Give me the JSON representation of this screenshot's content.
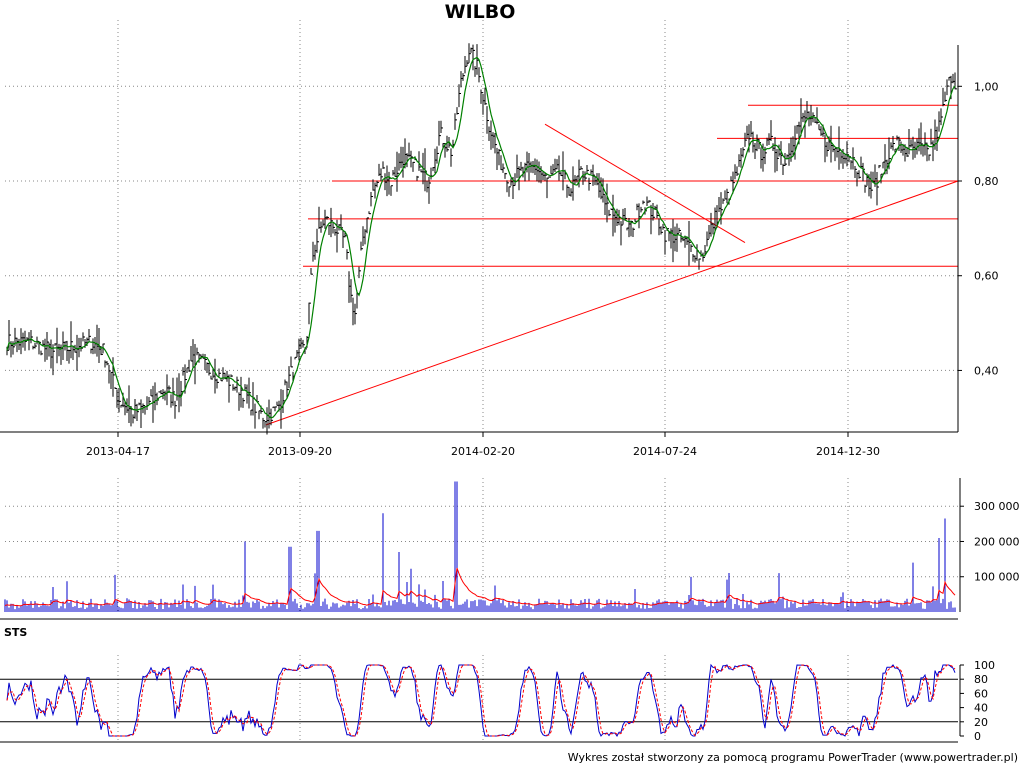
{
  "chart_data": [
    {
      "type": "candlestick",
      "title": "WILBO",
      "x_ticks": [
        "2013-04-17",
        "2013-09-20",
        "2014-02-20",
        "2014-07-24",
        "2014-12-30"
      ],
      "y_ticks": [
        "0,40",
        "0,60",
        "0,80",
        "1,00"
      ],
      "y_tick_values": [
        0.4,
        0.6,
        0.8,
        1.0
      ],
      "ylim": [
        0.27,
        1.14
      ],
      "price_bar_color": "#000000",
      "moving_average_color": "#008000",
      "grid": "dotted",
      "series": [
        {
          "kind": "close",
          "x": [
            "2013-02-01",
            "2013-02-20",
            "2013-03-10",
            "2013-03-25",
            "2013-04-05",
            "2013-04-17",
            "2013-04-30",
            "2013-05-15",
            "2013-05-25",
            "2013-06-05",
            "2013-06-20",
            "2013-07-05",
            "2013-07-20",
            "2013-07-31",
            "2013-08-10",
            "2013-08-20",
            "2013-09-01",
            "2013-09-10",
            "2013-09-20",
            "2013-09-25",
            "2013-10-01",
            "2013-10-10",
            "2013-10-20",
            "2013-10-28",
            "2013-11-01",
            "2013-11-05",
            "2013-11-12",
            "2013-11-20",
            "2013-11-28",
            "2013-12-05",
            "2013-12-15",
            "2013-12-25",
            "2014-01-05",
            "2014-01-15",
            "2014-01-25",
            "2014-02-01",
            "2014-02-08",
            "2014-02-15",
            "2014-02-25",
            "2014-03-05",
            "2014-03-15",
            "2014-03-25",
            "2014-04-05",
            "2014-04-15",
            "2014-04-25",
            "2014-05-05",
            "2014-05-15",
            "2014-05-25",
            "2014-06-05",
            "2014-06-15",
            "2014-06-25",
            "2014-07-05",
            "2014-07-15",
            "2014-07-24",
            "2014-08-05",
            "2014-08-15",
            "2014-08-25",
            "2014-09-05",
            "2014-09-15",
            "2014-09-25",
            "2014-10-05",
            "2014-10-15",
            "2014-10-25",
            "2014-11-05",
            "2014-11-15",
            "2014-11-25",
            "2014-12-05",
            "2014-12-15",
            "2014-12-30",
            "2015-01-10",
            "2015-01-20",
            "2015-02-01",
            "2015-02-10",
            "2015-02-20",
            "2015-03-01",
            "2015-03-10",
            "2015-03-20",
            "2015-03-25",
            "2015-03-30",
            "2015-04-05"
          ],
          "y": [
            0.46,
            0.44,
            0.45,
            0.46,
            0.44,
            0.34,
            0.31,
            0.33,
            0.36,
            0.34,
            0.43,
            0.4,
            0.38,
            0.36,
            0.33,
            0.3,
            0.32,
            0.38,
            0.44,
            0.45,
            0.65,
            0.72,
            0.7,
            0.67,
            0.56,
            0.52,
            0.69,
            0.78,
            0.82,
            0.8,
            0.85,
            0.83,
            0.8,
            0.9,
            0.86,
            1.0,
            1.08,
            1.04,
            0.92,
            0.85,
            0.8,
            0.82,
            0.83,
            0.8,
            0.82,
            0.78,
            0.82,
            0.8,
            0.74,
            0.72,
            0.7,
            0.76,
            0.73,
            0.69,
            0.68,
            0.66,
            0.64,
            0.72,
            0.76,
            0.82,
            0.9,
            0.86,
            0.88,
            0.84,
            0.91,
            0.94,
            0.9,
            0.87,
            0.86,
            0.82,
            0.78,
            0.85,
            0.88,
            0.86,
            0.87,
            0.86,
            0.92,
            0.98,
            1.03,
            0.98
          ]
        },
        {
          "kind": "support_resistance_lines",
          "color": "#ff0000",
          "horizontal_levels": [
            0.62,
            0.72,
            0.8,
            0.89,
            0.96
          ]
        }
      ]
    },
    {
      "type": "bar",
      "title": "",
      "y_ticks": [
        "100 000",
        "200 000",
        "300 000"
      ],
      "y_tick_values": [
        100000,
        200000,
        300000
      ],
      "ylim": [
        0,
        380000
      ],
      "bar_color": "#0000cc",
      "average_color": "#ff0000",
      "grid": "dotted"
    },
    {
      "type": "line",
      "title": "STS",
      "y_ticks": [
        "0",
        "20",
        "40",
        "60",
        "80",
        "100"
      ],
      "y_tick_values": [
        0,
        20,
        40,
        60,
        80,
        100
      ],
      "ylim": [
        0,
        100
      ],
      "reference_levels": [
        20,
        80
      ],
      "k_color": "#0000cc",
      "d_color": "#ff0000"
    }
  ],
  "footer": {
    "credit": "Wykres został stworzony za pomocą programu PowerTrader (www.powertrader.pl)"
  }
}
